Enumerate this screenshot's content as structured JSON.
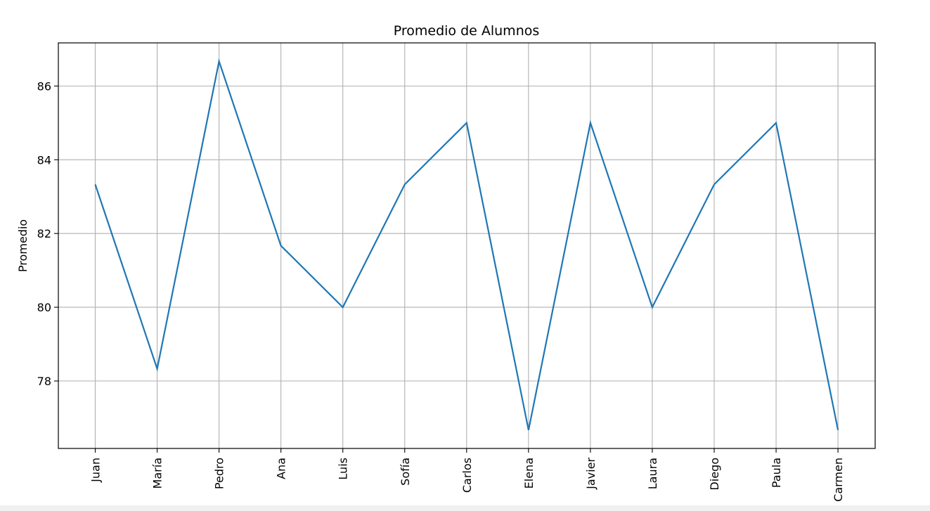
{
  "chart_data": {
    "type": "line",
    "title": "Promedio de Alumnos",
    "xlabel": "",
    "ylabel": "Promedio",
    "categories": [
      "Juan",
      "María",
      "Pedro",
      "Ana",
      "Luis",
      "Sofía",
      "Carlos",
      "Elena",
      "Javier",
      "Laura",
      "Diego",
      "Paula",
      "Carmen"
    ],
    "values": [
      83.33,
      78.33,
      86.67,
      81.67,
      80.0,
      83.33,
      85.0,
      76.67,
      85.0,
      80.0,
      83.33,
      85.0,
      76.67
    ],
    "ylim": [
      76.17,
      87.17
    ],
    "yticks": [
      78,
      80,
      82,
      84,
      86
    ],
    "grid": true,
    "line_color": "#1f77b4"
  }
}
